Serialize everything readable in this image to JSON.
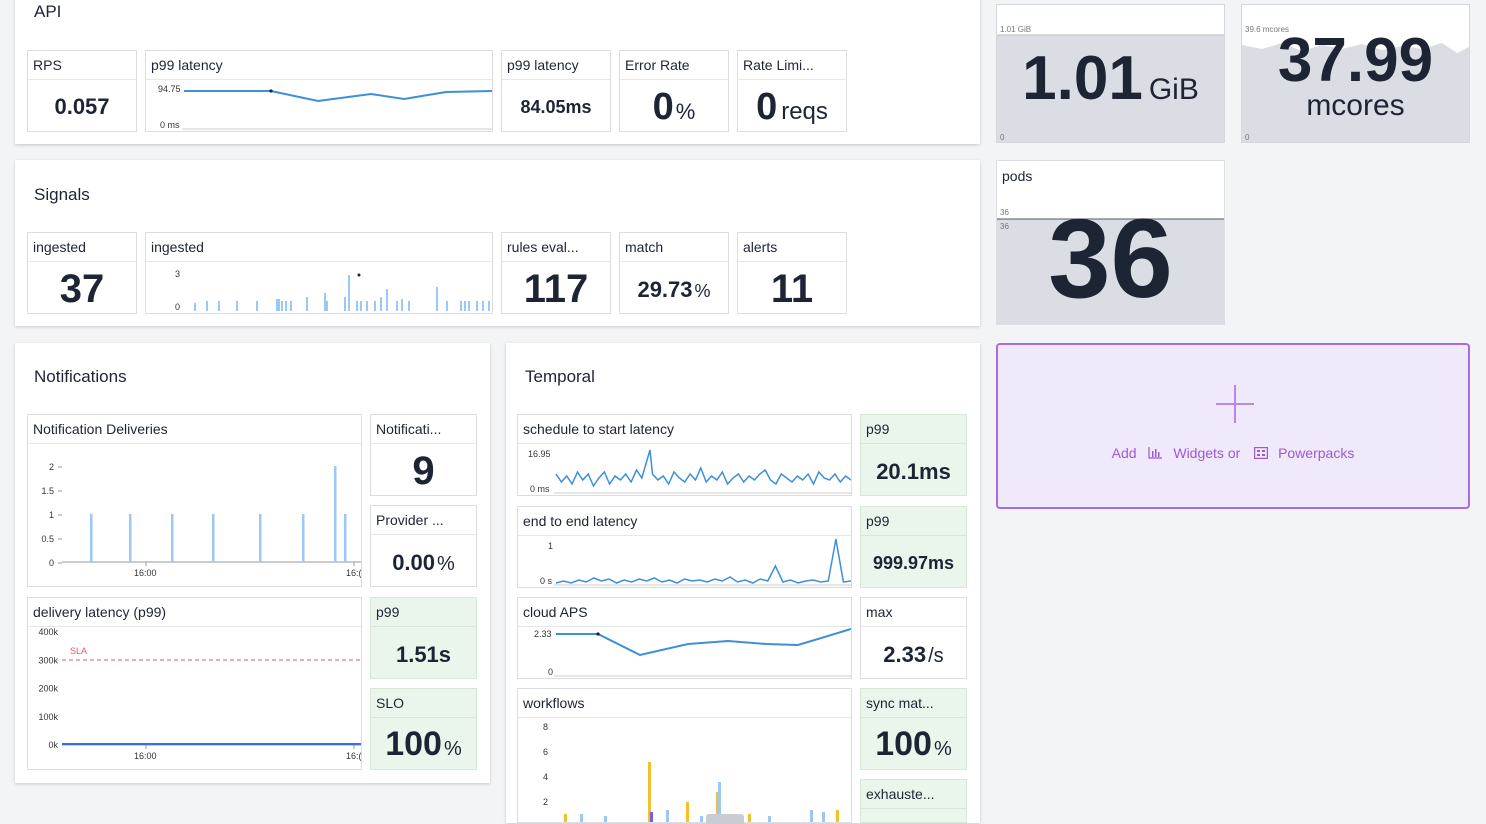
{
  "api": {
    "title": "API",
    "rps": {
      "title": "RPS",
      "value": "0.057"
    },
    "p99_chart": {
      "title": "p99 latency",
      "y_max": "94.75",
      "y_min": "0 ms"
    },
    "p99": {
      "title": "p99 latency",
      "value": "84.05ms"
    },
    "error_rate": {
      "title": "Error Rate",
      "value": "0",
      "unit": "%"
    },
    "rate_limit": {
      "title": "Rate Limi...",
      "value": "0",
      "unit": "reqs"
    }
  },
  "signals": {
    "title": "Signals",
    "ingested": {
      "title": "ingested",
      "value": "37"
    },
    "ingested_chart": {
      "title": "ingested",
      "y_max": "3",
      "y_min": "0"
    },
    "rules": {
      "title": "rules eval...",
      "value": "117"
    },
    "match": {
      "title": "match",
      "value": "29.73",
      "unit": "%"
    },
    "alerts": {
      "title": "alerts",
      "value": "11"
    }
  },
  "memory": {
    "value": "1.01",
    "unit": "GiB",
    "y_max": "1.01 GiB",
    "y_min": "0"
  },
  "cpu": {
    "value": "37.99",
    "unit": "mcores",
    "y_max": "39.6 mcores",
    "y_min": "0"
  },
  "pods": {
    "title": "pods",
    "value": "36",
    "y_top": "36",
    "y_mid": "36"
  },
  "add_widget": {
    "add": "Add",
    "widgets": "Widgets or",
    "powerpacks": "Powerpacks"
  },
  "notifications": {
    "title": "Notifications",
    "deliveries_chart": {
      "title": "Notification Deliveries",
      "y_ticks": [
        "2",
        "1.5",
        "1",
        "0.5",
        "0"
      ],
      "x_ticks": [
        "16:00",
        "16:("
      ]
    },
    "notifications_count": {
      "title": "Notificati...",
      "value": "9"
    },
    "provider": {
      "title": "Provider ...",
      "value": "0.00",
      "unit": "%"
    },
    "latency_chart": {
      "title": "delivery latency (p99)",
      "y_ticks": [
        "400k",
        "300k",
        "200k",
        "100k",
        "0k"
      ],
      "x_ticks": [
        "16:00",
        "16:("
      ],
      "marker": "SLA"
    },
    "p99": {
      "title": "p99",
      "value": "1.51s"
    },
    "slo": {
      "title": "SLO",
      "value": "100",
      "unit": "%"
    }
  },
  "temporal": {
    "title": "Temporal",
    "sched_chart": {
      "title": "schedule to start latency",
      "y_max": "16.95",
      "y_min": "0 ms"
    },
    "sched_p99": {
      "title": "p99",
      "value": "20.1ms"
    },
    "e2e_chart": {
      "title": "end to end latency",
      "y_max": "1",
      "y_min": "0 s"
    },
    "e2e_p99": {
      "title": "p99",
      "value": "999.97ms"
    },
    "aps_chart": {
      "title": "cloud APS",
      "y_max": "2.33",
      "y_min": "0"
    },
    "aps_max": {
      "title": "max",
      "value": "2.33",
      "unit": "/s"
    },
    "workflows_chart": {
      "title": "workflows",
      "y_ticks": [
        "8",
        "6",
        "4",
        "2"
      ]
    },
    "sync": {
      "title": "sync mat...",
      "value": "100",
      "unit": "%"
    },
    "exhausted": {
      "title": "exhauste..."
    }
  },
  "colors": {
    "accent": "#3d8fd9",
    "bar": "#9cc8f5",
    "sla": "#e05a6b",
    "green_bg": "#eaf6ec",
    "purple": "#9b59d6"
  }
}
